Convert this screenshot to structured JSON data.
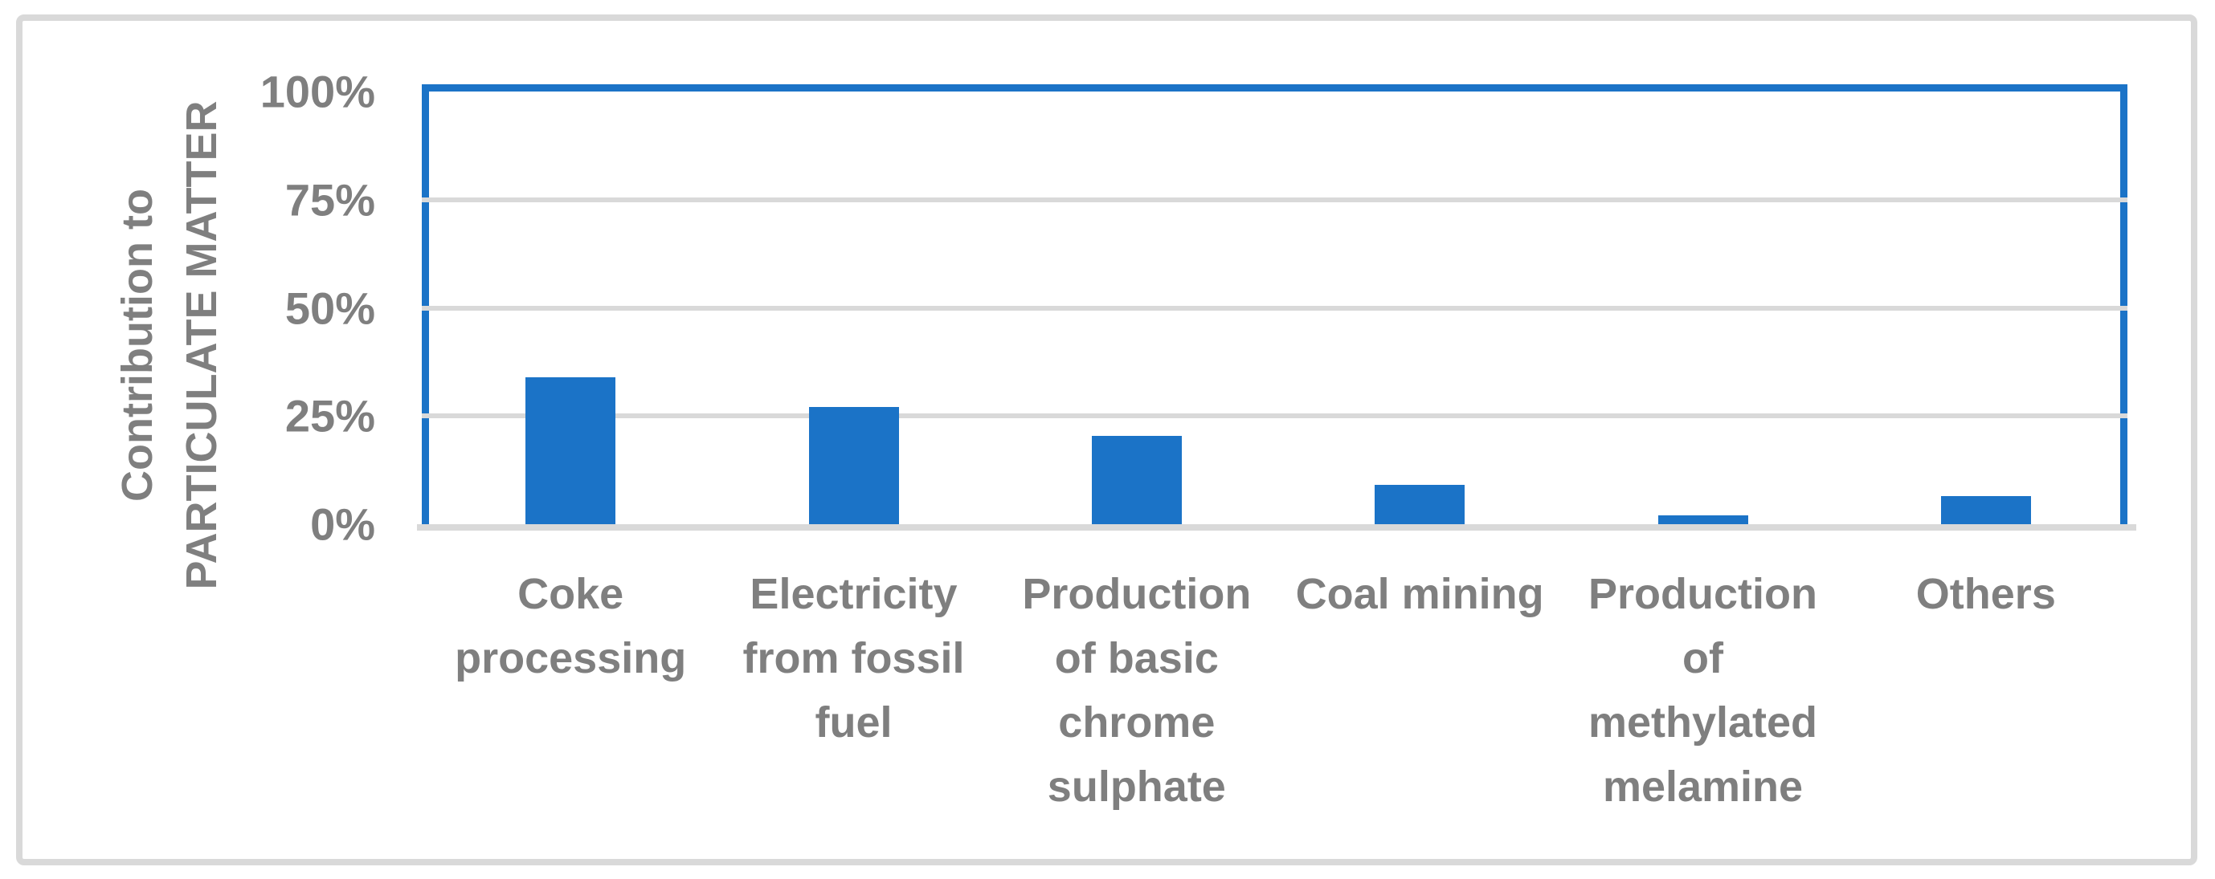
{
  "chart_data": {
    "type": "bar",
    "title": "",
    "categories": [
      "Coke processing",
      "Electricity from fossil fuel",
      "Production of basic chrome sulphate",
      "Coal mining",
      "Production of methylated melamine",
      "Others"
    ],
    "category_display": [
      "Coke\nprocessing",
      "Electricity\nfrom fossil\nfuel",
      "Production\nof basic\nchrome\nsulphate",
      "Coal mining",
      "Production\nof\nmethylated\nmelamine",
      "Others"
    ],
    "values": [
      34,
      27,
      20.5,
      9,
      2,
      6.5
    ],
    "unit": "%",
    "ylabel": "Contribution to PARTICULATE MATTER",
    "ylabel_lines": [
      "Contribution to",
      "PARTICULATE MATTER"
    ],
    "yticks": [
      0,
      25,
      50,
      75,
      100
    ],
    "ytick_labels": [
      "0%",
      "25%",
      "50%",
      "75%",
      "100%"
    ],
    "ylim": [
      0,
      100
    ],
    "grid": true,
    "legend_position": "none",
    "colors": {
      "bar": "#1B73C7",
      "plot_border": "#1B73C7",
      "gridline": "#D9D9D9",
      "axis_line": "#D9D9D9",
      "text": "#7F7F7F",
      "frame_border": "#D9D9D9",
      "background": "#FFFFFF"
    }
  }
}
